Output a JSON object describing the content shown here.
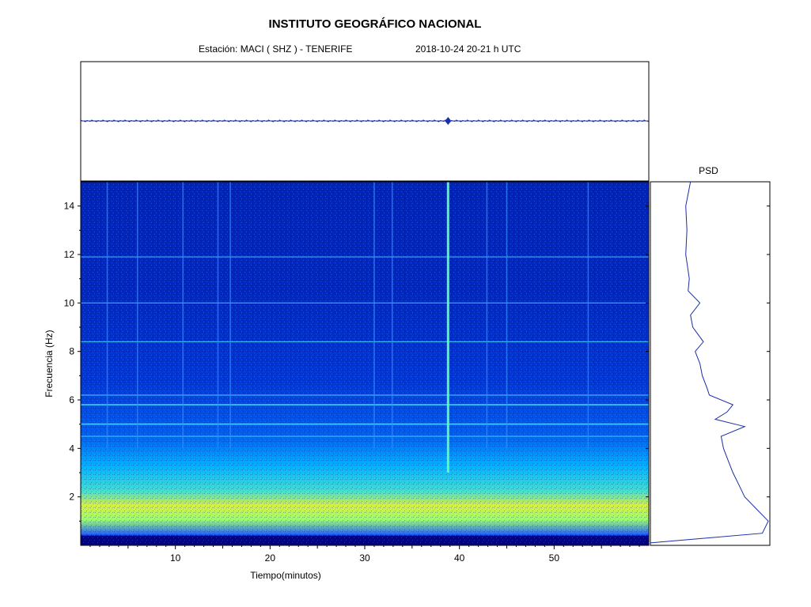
{
  "header": {
    "title": "INSTITUTO GEOGRÁFICO NACIONAL",
    "station": "Estación:  MACI ( SHZ ) - TENERIFE",
    "datetime": "2018-10-24  20-21 h UTC"
  },
  "chart_data": [
    {
      "type": "line",
      "panel": "seismogram",
      "title": "",
      "xlabel": "",
      "ylabel": "",
      "xlim": [
        0,
        60
      ],
      "events_minutes": [
        38.8
      ],
      "color": "#1a2ea8"
    },
    {
      "type": "heatmap",
      "panel": "spectrogram",
      "xlabel": "Tiempo(minutos)",
      "ylabel": "Frecuencia  (Hz)",
      "xlim": [
        0,
        60
      ],
      "ylim": [
        0,
        15
      ],
      "x_ticks": [
        10,
        20,
        30,
        40,
        50
      ],
      "y_ticks": [
        2,
        4,
        6,
        8,
        10,
        12,
        14
      ],
      "colormap": [
        "#00008b",
        "#0000ff",
        "#0080ff",
        "#00ffff",
        "#80ff80",
        "#ffff00"
      ],
      "horizontal_lines_hz": [
        4.5,
        5.0,
        5.8,
        6.2,
        8.4,
        10.0,
        11.9
      ],
      "vertical_lines_min": [
        2.8,
        6.0,
        10.8,
        14.5,
        15.8,
        31.0,
        32.9,
        38.8,
        42.9,
        45.0,
        53.6
      ]
    },
    {
      "type": "line",
      "panel": "psd",
      "title": "PSD",
      "y": [
        0.1,
        0.5,
        1.0,
        1.5,
        2.0,
        2.5,
        3.0,
        3.5,
        4.0,
        4.5,
        4.9,
        5.2,
        5.5,
        5.8,
        6.2,
        6.5,
        7.0,
        7.5,
        8.0,
        8.4,
        9.0,
        9.5,
        10.0,
        10.5,
        11.0,
        12.0,
        13.0,
        14.0,
        15.0
      ],
      "x": [
        0.0,
        0.95,
        1.0,
        0.9,
        0.8,
        0.75,
        0.7,
        0.66,
        0.62,
        0.6,
        0.8,
        0.55,
        0.65,
        0.7,
        0.5,
        0.48,
        0.44,
        0.42,
        0.38,
        0.45,
        0.36,
        0.34,
        0.42,
        0.32,
        0.33,
        0.3,
        0.31,
        0.3,
        0.34
      ],
      "color": "#1a2ea8"
    }
  ]
}
